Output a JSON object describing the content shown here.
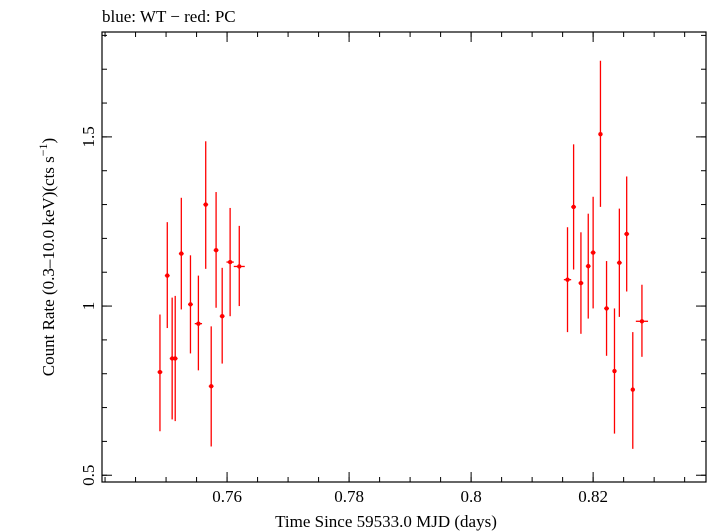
{
  "chart_data": {
    "type": "scatter",
    "title": "blue: WT − red: PC",
    "xlabel": "Time Since 59533.0 MJD (days)",
    "ylabel_main": "Count Rate (0.3–10.0 keV)(cts s",
    "ylabel_sup": "−1",
    "ylabel_end": ")",
    "xlim": [
      0.7395,
      0.8385
    ],
    "ylim": [
      0.48,
      1.81
    ],
    "xticks": [
      {
        "value": 0.76,
        "label": "0.76"
      },
      {
        "value": 0.78,
        "label": "0.78"
      },
      {
        "value": 0.8,
        "label": "0.8"
      },
      {
        "value": 0.82,
        "label": "0.82"
      }
    ],
    "yticks": [
      {
        "value": 0.5,
        "label": "0.5"
      },
      {
        "value": 1.0,
        "label": "1"
      },
      {
        "value": 1.5,
        "label": "1.5"
      }
    ],
    "x_minor_step": 0.005,
    "y_minor_step": 0.1,
    "grid": false,
    "series": [
      {
        "color": "#ff0000",
        "points": [
          {
            "x": 0.749,
            "y": 0.805,
            "xerr": 0.0004,
            "ylo": 0.63,
            "yhi": 0.975
          },
          {
            "x": 0.7502,
            "y": 1.09,
            "xerr": 0.0004,
            "ylo": 0.935,
            "yhi": 1.248
          },
          {
            "x": 0.751,
            "y": 0.845,
            "xerr": 0.0004,
            "ylo": 0.665,
            "yhi": 1.025
          },
          {
            "x": 0.7515,
            "y": 0.845,
            "xerr": 0.0004,
            "ylo": 0.66,
            "yhi": 1.03
          },
          {
            "x": 0.7525,
            "y": 1.155,
            "xerr": 0.0004,
            "ylo": 0.99,
            "yhi": 1.32
          },
          {
            "x": 0.754,
            "y": 1.005,
            "xerr": 0.0004,
            "ylo": 0.86,
            "yhi": 1.15
          },
          {
            "x": 0.7553,
            "y": 0.948,
            "xerr": 0.0006,
            "ylo": 0.81,
            "yhi": 1.09
          },
          {
            "x": 0.7565,
            "y": 1.3,
            "xerr": 0.0004,
            "ylo": 1.11,
            "yhi": 1.487
          },
          {
            "x": 0.7574,
            "y": 0.763,
            "xerr": 0.0004,
            "ylo": 0.585,
            "yhi": 0.94
          },
          {
            "x": 0.7582,
            "y": 1.165,
            "xerr": 0.0004,
            "ylo": 0.995,
            "yhi": 1.337
          },
          {
            "x": 0.7592,
            "y": 0.97,
            "xerr": 0.0004,
            "ylo": 0.83,
            "yhi": 1.113
          },
          {
            "x": 0.7605,
            "y": 1.13,
            "xerr": 0.0006,
            "ylo": 0.97,
            "yhi": 1.29
          },
          {
            "x": 0.762,
            "y": 1.117,
            "xerr": 0.0009,
            "ylo": 1.0,
            "yhi": 1.237
          },
          {
            "x": 0.8158,
            "y": 1.078,
            "xerr": 0.0006,
            "ylo": 0.923,
            "yhi": 1.233
          },
          {
            "x": 0.8168,
            "y": 1.293,
            "xerr": 0.0004,
            "ylo": 1.108,
            "yhi": 1.478
          },
          {
            "x": 0.818,
            "y": 1.068,
            "xerr": 0.0004,
            "ylo": 0.918,
            "yhi": 1.218
          },
          {
            "x": 0.8192,
            "y": 1.118,
            "xerr": 0.0004,
            "ylo": 0.963,
            "yhi": 1.273
          },
          {
            "x": 0.82,
            "y": 1.158,
            "xerr": 0.0004,
            "ylo": 0.993,
            "yhi": 1.323
          },
          {
            "x": 0.8212,
            "y": 1.508,
            "xerr": 0.0003,
            "ylo": 1.293,
            "yhi": 1.725
          },
          {
            "x": 0.8222,
            "y": 0.993,
            "xerr": 0.0004,
            "ylo": 0.853,
            "yhi": 1.133
          },
          {
            "x": 0.8235,
            "y": 0.808,
            "xerr": 0.0003,
            "ylo": 0.623,
            "yhi": 0.993
          },
          {
            "x": 0.8243,
            "y": 1.128,
            "xerr": 0.0004,
            "ylo": 0.968,
            "yhi": 1.288
          },
          {
            "x": 0.8255,
            "y": 1.213,
            "xerr": 0.0004,
            "ylo": 1.043,
            "yhi": 1.383
          },
          {
            "x": 0.8265,
            "y": 0.753,
            "xerr": 0.0003,
            "ylo": 0.578,
            "yhi": 0.923
          },
          {
            "x": 0.828,
            "y": 0.955,
            "xerr": 0.001,
            "ylo": 0.85,
            "yhi": 1.063
          }
        ]
      }
    ]
  }
}
